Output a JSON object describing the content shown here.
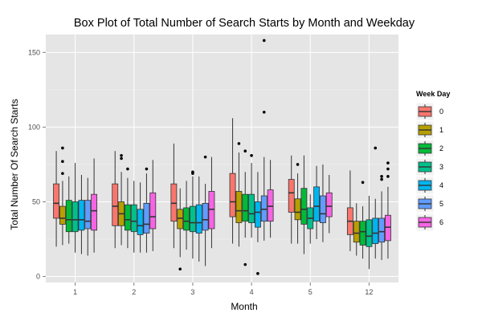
{
  "chart_data": {
    "type": "boxplot",
    "title": "Box Plot of Total Number of Search Starts by Month and Weekday",
    "xlabel": "Month",
    "ylabel": "Total Number Of Search Starts",
    "categories": [
      "1",
      "2",
      "3",
      "4",
      "5",
      "12"
    ],
    "ylim": [
      -4,
      162
    ],
    "yticks": [
      0,
      50,
      100,
      150
    ],
    "grid": true,
    "legend": {
      "title": "Week Day",
      "placement": "right"
    },
    "series": [
      {
        "name": "0",
        "color": "#F8766D",
        "boxes": [
          {
            "lower": 20,
            "q1": 39,
            "median": 49,
            "q3": 62,
            "upper": 84,
            "outliers": []
          },
          {
            "lower": 19,
            "q1": 34,
            "median": 47,
            "q3": 62,
            "upper": 84,
            "outliers": []
          },
          {
            "lower": 19,
            "q1": 37,
            "median": 49,
            "q3": 62,
            "upper": 89,
            "outliers": []
          },
          {
            "lower": 22,
            "q1": 40,
            "median": 50,
            "q3": 69,
            "upper": 106,
            "outliers": []
          },
          {
            "lower": 22,
            "q1": 43,
            "median": 56,
            "q3": 65,
            "upper": 81,
            "outliers": []
          },
          {
            "lower": 17,
            "q1": 28,
            "median": 37,
            "q3": 46,
            "upper": 71,
            "outliers": []
          }
        ]
      },
      {
        "name": "1",
        "color": "#B79F00",
        "boxes": [
          {
            "lower": 21,
            "q1": 35,
            "median": 39,
            "q3": 47,
            "upper": 64,
            "outliers": [
              86,
              77,
              69
            ]
          },
          {
            "lower": 21,
            "q1": 34,
            "median": 42,
            "q3": 50,
            "upper": 70,
            "outliers": [
              81,
              79
            ]
          },
          {
            "lower": 13,
            "q1": 32,
            "median": 39,
            "q3": 45,
            "upper": 59,
            "outliers": [
              5
            ]
          },
          {
            "lower": 20,
            "q1": 36,
            "median": 44,
            "q3": 57,
            "upper": 83,
            "outliers": [
              89
            ]
          },
          {
            "lower": 22,
            "q1": 38,
            "median": 43,
            "q3": 52,
            "upper": 69,
            "outliers": [
              75
            ]
          },
          {
            "lower": 14,
            "q1": 23,
            "median": 29,
            "q3": 37,
            "upper": 49,
            "outliers": []
          }
        ]
      },
      {
        "name": "2",
        "color": "#00BA38",
        "boxes": [
          {
            "lower": 22,
            "q1": 30,
            "median": 38,
            "q3": 51,
            "upper": 67,
            "outliers": []
          },
          {
            "lower": 19,
            "q1": 31,
            "median": 38,
            "q3": 48,
            "upper": 66,
            "outliers": [
              72
            ]
          },
          {
            "lower": 18,
            "q1": 31,
            "median": 37,
            "q3": 46,
            "upper": 64,
            "outliers": []
          },
          {
            "lower": 26,
            "q1": 37,
            "median": 44,
            "q3": 55,
            "upper": 70,
            "outliers": [
              84,
              8
            ]
          },
          {
            "lower": 15,
            "q1": 35,
            "median": 45,
            "q3": 59,
            "upper": 81,
            "outliers": []
          },
          {
            "lower": 12,
            "q1": 21,
            "median": 30,
            "q3": 37,
            "upper": 47,
            "outliers": [
              63
            ]
          }
        ]
      },
      {
        "name": "3",
        "color": "#00C08B",
        "boxes": [
          {
            "lower": 16,
            "q1": 30,
            "median": 38,
            "q3": 50,
            "upper": 76,
            "outliers": []
          },
          {
            "lower": 16,
            "q1": 30,
            "median": 37,
            "q3": 48,
            "upper": 64,
            "outliers": []
          },
          {
            "lower": 12,
            "q1": 30,
            "median": 36,
            "q3": 47,
            "upper": 67,
            "outliers": [
              70,
              69
            ]
          },
          {
            "lower": 26,
            "q1": 36,
            "median": 42,
            "q3": 55,
            "upper": 76,
            "outliers": [
              81
            ]
          },
          {
            "lower": 22,
            "q1": 32,
            "median": 39,
            "q3": 46,
            "upper": 55,
            "outliers": []
          },
          {
            "lower": 5,
            "q1": 20,
            "median": 27,
            "q3": 38,
            "upper": 54,
            "outliers": []
          }
        ]
      },
      {
        "name": "4",
        "color": "#00B4F0",
        "boxes": [
          {
            "lower": 15,
            "q1": 31,
            "median": 38,
            "q3": 51,
            "upper": 68,
            "outliers": []
          },
          {
            "lower": 16,
            "q1": 28,
            "median": 34,
            "q3": 45,
            "upper": 63,
            "outliers": []
          },
          {
            "lower": 10,
            "q1": 29,
            "median": 36,
            "q3": 48,
            "upper": 67,
            "outliers": []
          },
          {
            "lower": 23,
            "q1": 33,
            "median": 43,
            "q3": 50,
            "upper": 70,
            "outliers": [
              2
            ]
          },
          {
            "lower": 25,
            "q1": 37,
            "median": 47,
            "q3": 60,
            "upper": 74,
            "outliers": []
          },
          {
            "lower": 12,
            "q1": 22,
            "median": 29,
            "q3": 39,
            "upper": 52,
            "outliers": [
              86
            ]
          }
        ]
      },
      {
        "name": "5",
        "color": "#619CFF",
        "boxes": [
          {
            "lower": 14,
            "q1": 32,
            "median": 37,
            "q3": 51,
            "upper": 66,
            "outliers": []
          },
          {
            "lower": 16,
            "q1": 29,
            "median": 35,
            "q3": 49,
            "upper": 69,
            "outliers": [
              72
            ]
          },
          {
            "lower": 7,
            "q1": 31,
            "median": 38,
            "q3": 49,
            "upper": 62,
            "outliers": [
              80
            ]
          },
          {
            "lower": 24,
            "q1": 37,
            "median": 45,
            "q3": 54,
            "upper": 80,
            "outliers": [
              158,
              110
            ]
          },
          {
            "lower": 23,
            "q1": 36,
            "median": 42,
            "q3": 54,
            "upper": 75,
            "outliers": []
          },
          {
            "lower": 11,
            "q1": 23,
            "median": 30,
            "q3": 39,
            "upper": 57,
            "outliers": [
              67,
              65
            ]
          }
        ]
      },
      {
        "name": "6",
        "color": "#F564E3",
        "boxes": [
          {
            "lower": 16,
            "q1": 31,
            "median": 44,
            "q3": 55,
            "upper": 79,
            "outliers": []
          },
          {
            "lower": 17,
            "q1": 32,
            "median": 40,
            "q3": 56,
            "upper": 78,
            "outliers": []
          },
          {
            "lower": 19,
            "q1": 32,
            "median": 45,
            "q3": 57,
            "upper": 80,
            "outliers": []
          },
          {
            "lower": 26,
            "q1": 37,
            "median": 47,
            "q3": 58,
            "upper": 78,
            "outliers": []
          },
          {
            "lower": 29,
            "q1": 40,
            "median": 47,
            "q3": 56,
            "upper": 68,
            "outliers": []
          },
          {
            "lower": 12,
            "q1": 24,
            "median": 33,
            "q3": 41,
            "upper": 60,
            "outliers": [
              76,
              72,
              67
            ]
          }
        ]
      }
    ]
  }
}
